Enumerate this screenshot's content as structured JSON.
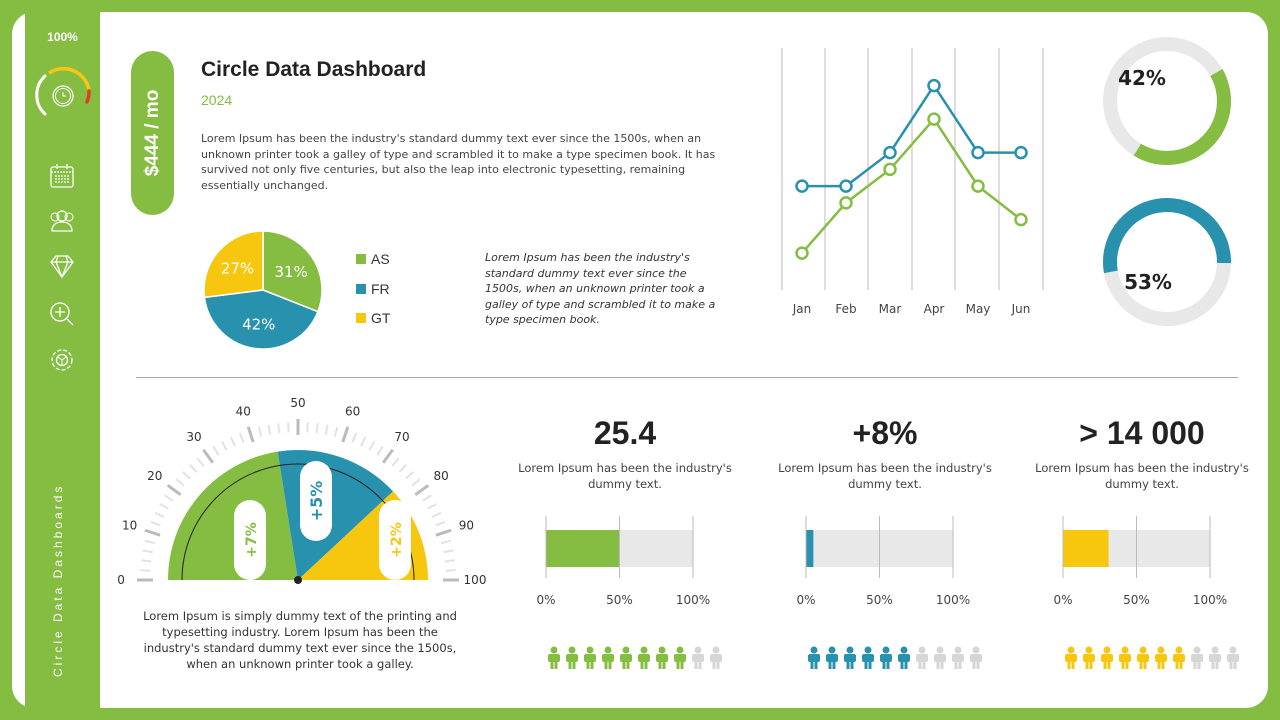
{
  "sidebar": {
    "percent": "100%",
    "vertical_label": "Circle Data Dashboards",
    "icons": [
      "calendar-icon",
      "users-icon",
      "diamond-icon",
      "zoom-in-icon",
      "settings-icon"
    ],
    "timer_icon": "stopwatch-icon"
  },
  "header": {
    "price": "$444 / mo",
    "title": "Circle Data Dashboard",
    "year": "2024",
    "paragraph": "Lorem Ipsum has been the industry's standard dummy text ever since the 1500s, when an unknown printer took a galley of type and scrambled it to make a type specimen book. It has survived not only five centuries, but also the leap into electronic typesetting, remaining essentially unchanged."
  },
  "pie": {
    "slices": [
      {
        "label": "AS",
        "value": 31,
        "text": "31%",
        "color": "#84bd41"
      },
      {
        "label": "FR",
        "value": 42,
        "text": "42%",
        "color": "#2891ad"
      },
      {
        "label": "GT",
        "value": 27,
        "text": "27%",
        "color": "#f7c710"
      }
    ]
  },
  "italic_text": "Lorem Ipsum  has been the industry's standard dummy text ever since the 1500s, when an unknown printer took a galley of type and scrambled it to make a type specimen book.",
  "chart_data": {
    "type": "line",
    "categories": [
      "Jan",
      "Feb",
      "Mar",
      "Apr",
      "May",
      "Jun"
    ],
    "series": [
      {
        "values": [
          3.4,
          3.4,
          4.4,
          6.4,
          4.4,
          4.4
        ],
        "color": "#2891ad"
      },
      {
        "values": [
          1.4,
          2.9,
          3.9,
          5.4,
          3.4,
          2.4
        ],
        "color": "#84bd41"
      }
    ],
    "grid": "vertical",
    "y_axis": "hidden"
  },
  "donuts": [
    {
      "value": 42,
      "text": "42%",
      "color": "#84bd41"
    },
    {
      "value": 53,
      "text": "53%",
      "color": "#2891ad"
    }
  ],
  "gauge": {
    "ticks": [
      "0",
      "10",
      "20",
      "30",
      "40",
      "50",
      "60",
      "70",
      "80",
      "90",
      "100"
    ],
    "segments": [
      {
        "text": "+7%",
        "color": "#84bd41"
      },
      {
        "text": "+5%",
        "color": "#2891ad"
      },
      {
        "text": "+2%",
        "color": "#f7c710"
      }
    ],
    "text": "Lorem Ipsum is simply dummy text of the printing and typesetting industry. Lorem Ipsum has been the industry's standard dummy text ever since the 1500s, when an unknown printer took a galley."
  },
  "stats": [
    {
      "value": "25.4",
      "desc": "Lorem Ipsum has been the industry's dummy text.",
      "bar": 50,
      "people": 8,
      "color": "#84bd41"
    },
    {
      "value": "+8%",
      "desc": "Lorem Ipsum has been the industry's dummy text.",
      "bar": 5,
      "people": 6,
      "color": "#2891ad"
    },
    {
      "value": "> 14 000",
      "desc": "Lorem Ipsum has been the industry's dummy text.",
      "bar": 31,
      "people": 7,
      "color": "#f7c710"
    }
  ],
  "bar_axis": [
    "0%",
    "50%",
    "100%"
  ]
}
